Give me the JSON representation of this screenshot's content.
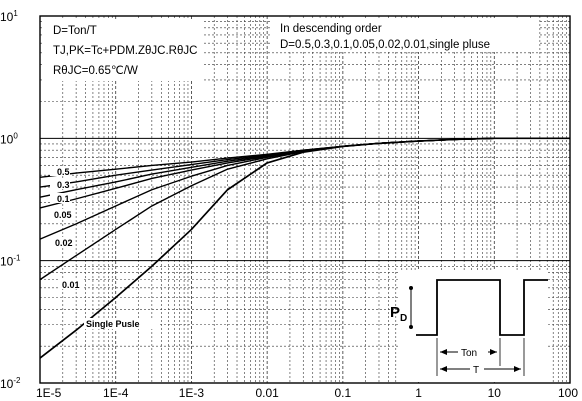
{
  "chart_data": {
    "type": "line",
    "title": "",
    "xlabel": "",
    "ylabel": "",
    "x_scale": "log",
    "y_scale": "log",
    "xlim": [
      1e-05,
      100
    ],
    "ylim": [
      0.01,
      10
    ],
    "grid": true,
    "x_ticks": [
      "1E-5",
      "1E-4",
      "1E-3",
      "0.01",
      "0.1",
      "1",
      "10",
      "100"
    ],
    "y_ticks": [
      {
        "base": "10",
        "exp": "1",
        "value": 10
      },
      {
        "base": "10",
        "exp": "0",
        "value": 1
      },
      {
        "base": "10",
        "exp": "-1",
        "value": 0.1
      },
      {
        "base": "10",
        "exp": "-2",
        "value": 0.01
      }
    ],
    "annotation_left": [
      "D=Ton/T",
      "TJ,PK=Tc+PDM.ZθJC.RθJC",
      "RθJC=0.65℃/W"
    ],
    "annotation_right": [
      "In descending order",
      "D=0.5,0.3,0.1,0.05,0.02,0.01,single pluse"
    ],
    "x": [
      1e-05,
      3e-05,
      0.0001,
      0.0003,
      0.001,
      0.003,
      0.01,
      0.03,
      0.1,
      0.3,
      1,
      3,
      10,
      100
    ],
    "series": [
      {
        "name": "0.5",
        "values": [
          0.48,
          0.52,
          0.56,
          0.6,
          0.64,
          0.69,
          0.74,
          0.8,
          0.86,
          0.91,
          0.95,
          0.98,
          1.0,
          1.0
        ]
      },
      {
        "name": "0.3",
        "values": [
          0.4,
          0.44,
          0.5,
          0.55,
          0.61,
          0.67,
          0.73,
          0.8,
          0.86,
          0.91,
          0.95,
          0.98,
          1.0,
          1.0
        ]
      },
      {
        "name": "0.1",
        "values": [
          0.33,
          0.38,
          0.44,
          0.51,
          0.58,
          0.65,
          0.72,
          0.79,
          0.86,
          0.91,
          0.95,
          0.98,
          1.0,
          1.0
        ]
      },
      {
        "name": "0.05",
        "values": [
          0.27,
          0.32,
          0.39,
          0.47,
          0.55,
          0.63,
          0.71,
          0.79,
          0.86,
          0.91,
          0.95,
          0.98,
          1.0,
          1.0
        ]
      },
      {
        "name": "0.02",
        "values": [
          0.15,
          0.2,
          0.28,
          0.38,
          0.49,
          0.6,
          0.7,
          0.78,
          0.86,
          0.91,
          0.95,
          0.98,
          1.0,
          1.0
        ]
      },
      {
        "name": "0.01",
        "values": [
          0.07,
          0.11,
          0.18,
          0.28,
          0.41,
          0.56,
          0.68,
          0.78,
          0.86,
          0.91,
          0.95,
          0.98,
          1.0,
          1.0
        ]
      },
      {
        "name": "Single Pusle",
        "values": [
          0.016,
          0.027,
          0.05,
          0.09,
          0.18,
          0.38,
          0.63,
          0.77,
          0.86,
          0.91,
          0.95,
          0.98,
          1.0,
          1.0
        ]
      }
    ],
    "pulse_diagram": {
      "pd_label": "P",
      "pd_subscript": "D",
      "ton_label": "Ton",
      "t_label": "T"
    }
  }
}
